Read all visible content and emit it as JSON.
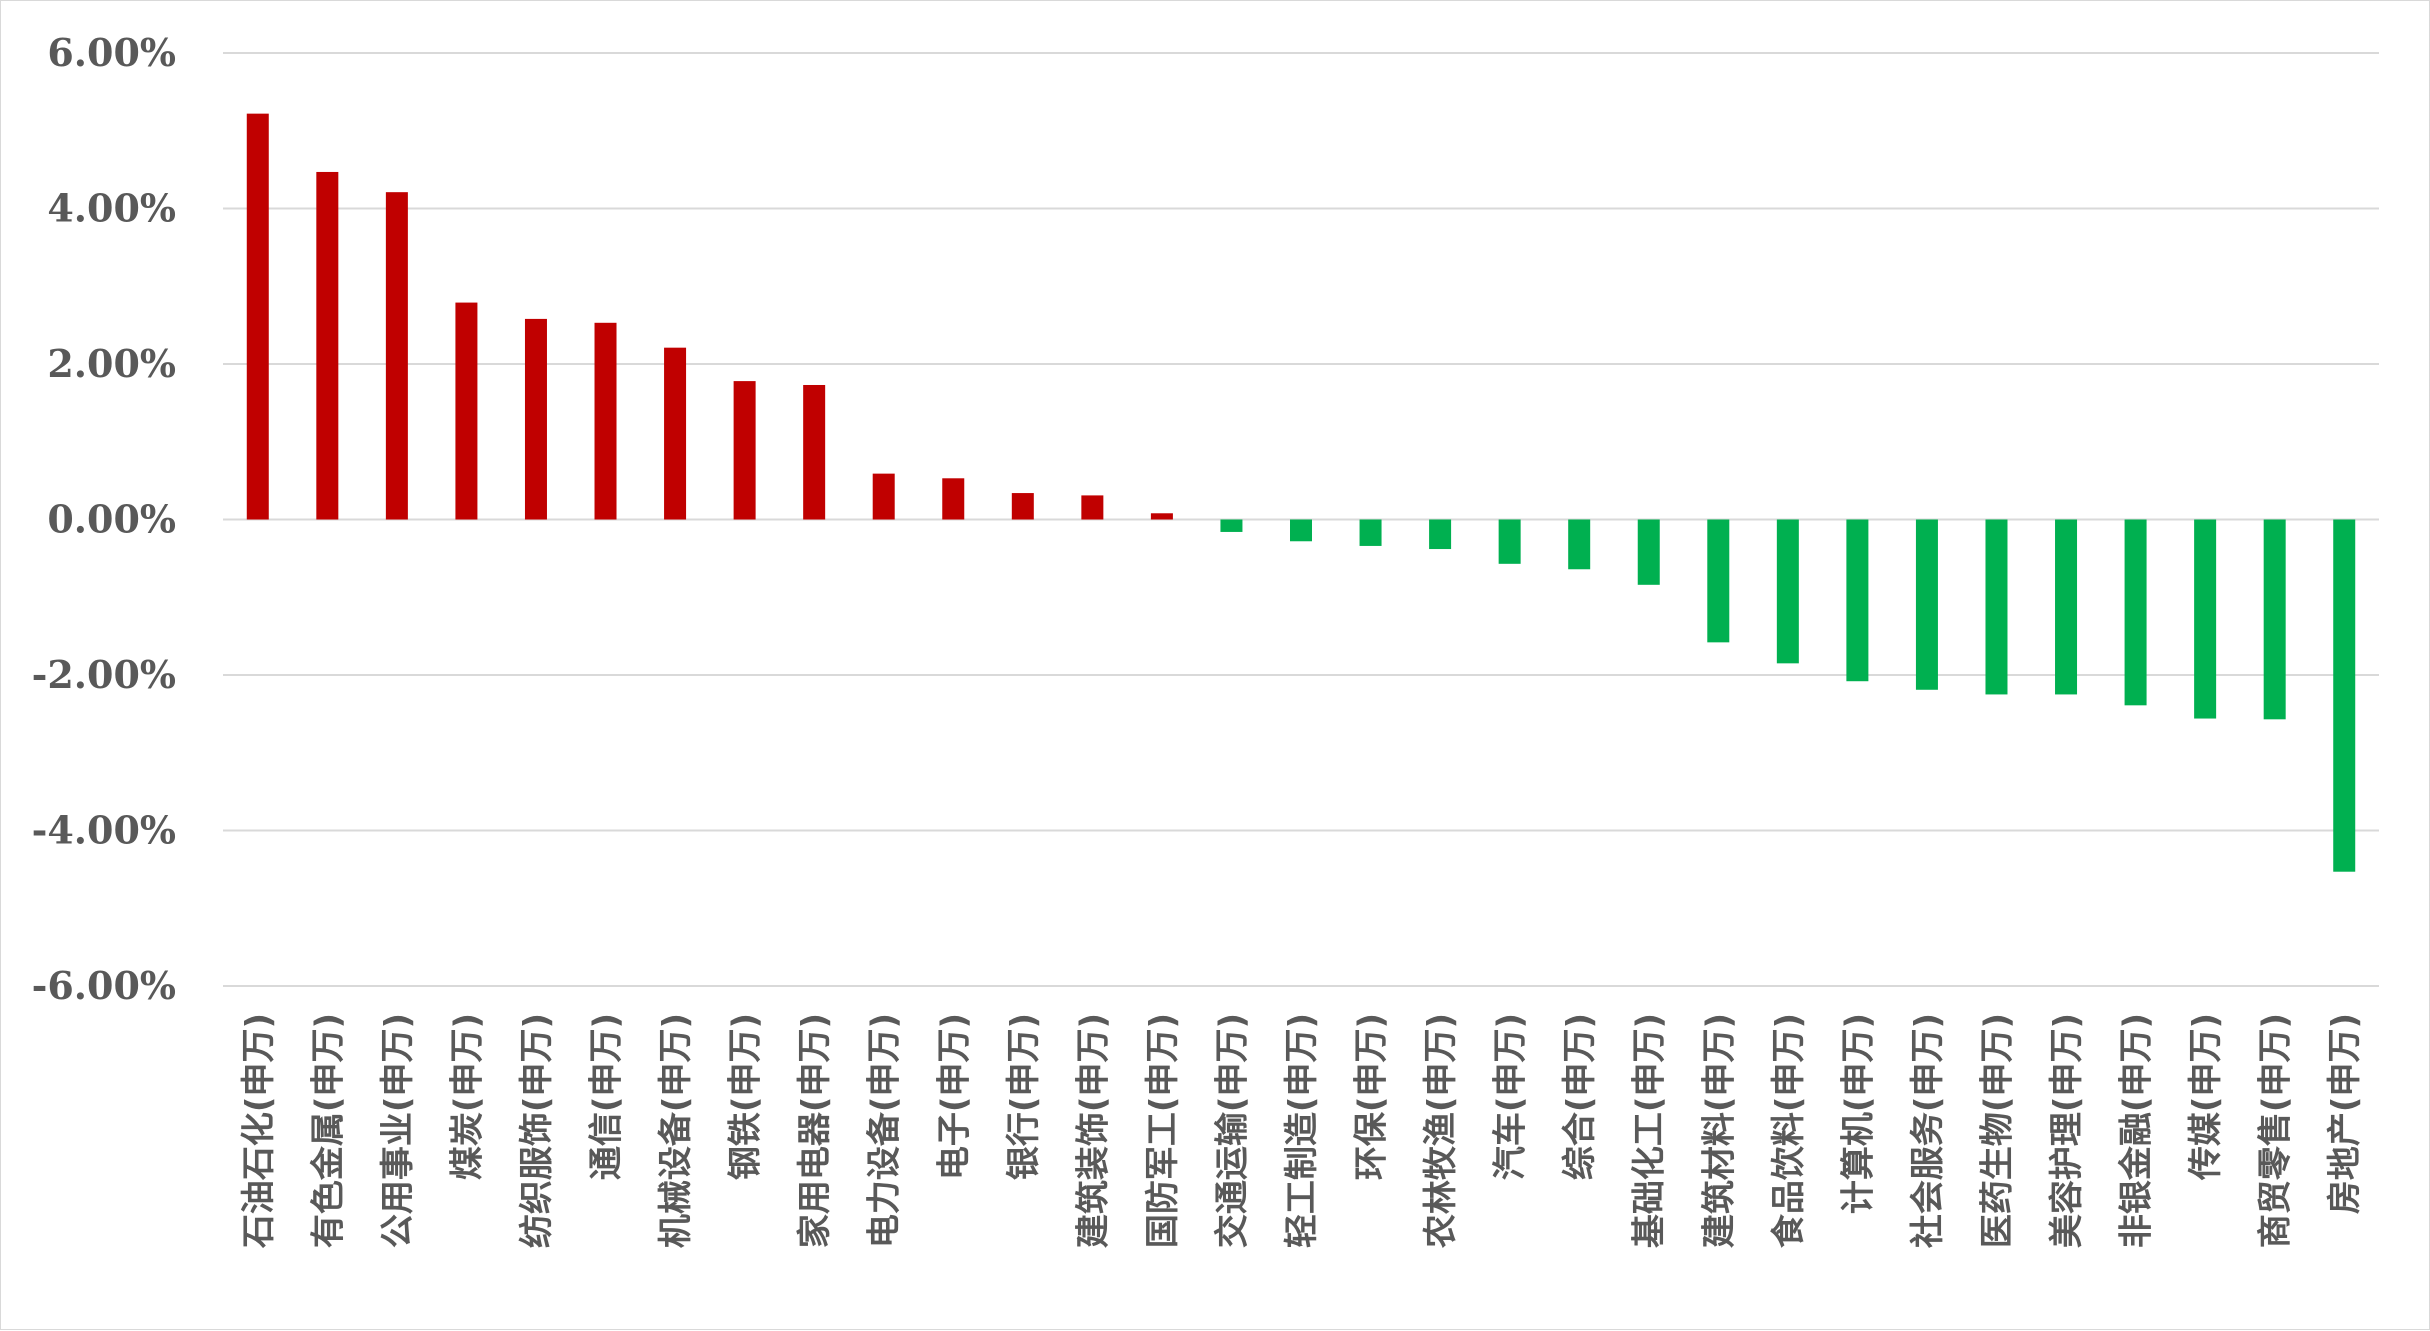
{
  "chart_data": {
    "type": "bar",
    "title": "",
    "xlabel": "",
    "ylabel": "",
    "ylim": [
      -6,
      6
    ],
    "yticks": [
      6,
      4,
      2,
      0,
      -2,
      -4,
      -6
    ],
    "ytick_labels": [
      "6.00%",
      "4.00%",
      "2.00%",
      "0.00%",
      "-2.00%",
      "-4.00%",
      "-6.00%"
    ],
    "grid": true,
    "legend": "none",
    "colors": {
      "positive": "#c00000",
      "negative": "#00b050"
    },
    "categories": [
      "石油石化(申万)",
      "有色金属(申万)",
      "公用事业(申万)",
      "煤炭(申万)",
      "纺织服饰(申万)",
      "通信(申万)",
      "机械设备(申万)",
      "钢铁(申万)",
      "家用电器(申万)",
      "电力设备(申万)",
      "电子(申万)",
      "银行(申万)",
      "建筑装饰(申万)",
      "国防军工(申万)",
      "交通运输(申万)",
      "轻工制造(申万)",
      "环保(申万)",
      "农林牧渔(申万)",
      "汽车(申万)",
      "综合(申万)",
      "基础化工(申万)",
      "建筑材料(申万)",
      "食品饮料(申万)",
      "计算机(申万)",
      "社会服务(申万)",
      "医药生物(申万)",
      "美容护理(申万)",
      "非银金融(申万)",
      "传媒(申万)",
      "商贸零售(申万)",
      "房地产(申万)"
    ],
    "values": [
      5.22,
      4.47,
      4.21,
      2.79,
      2.58,
      2.53,
      2.21,
      1.78,
      1.73,
      0.59,
      0.53,
      0.34,
      0.31,
      0.08,
      -0.16,
      -0.28,
      -0.34,
      -0.38,
      -0.57,
      -0.64,
      -0.84,
      -1.58,
      -1.85,
      -2.08,
      -2.19,
      -2.25,
      -2.25,
      -2.39,
      -2.56,
      -2.57,
      -4.53
    ]
  }
}
